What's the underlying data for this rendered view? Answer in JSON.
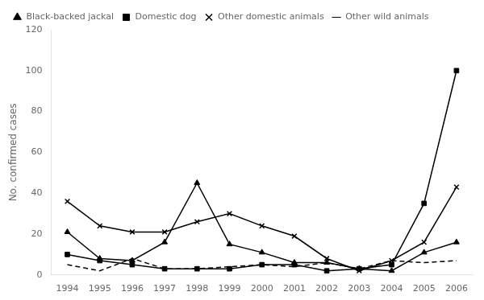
{
  "chart_data": {
    "type": "line",
    "x": [
      1994,
      1995,
      1996,
      1997,
      1998,
      1999,
      2000,
      2001,
      2002,
      2003,
      2004,
      2005,
      2006
    ],
    "xlim": [
      1993.5,
      2006.5
    ],
    "xticks": [
      1994,
      1995,
      1996,
      1997,
      1998,
      1999,
      2000,
      2001,
      2002,
      2003,
      2004,
      2005,
      2006
    ],
    "ylabel": "No. confirmed cases",
    "ylim": [
      0,
      120
    ],
    "yticks": [
      0,
      20,
      40,
      60,
      80,
      100,
      120
    ],
    "grid": false,
    "legend": "upper left",
    "series": [
      {
        "name": "Black-backed jackal",
        "color": "#000000",
        "marker": "triangle",
        "line_style": "solid",
        "values": [
          21,
          8,
          7,
          16,
          45,
          15,
          11,
          6,
          6,
          3,
          2,
          11,
          16
        ]
      },
      {
        "name": "Domestic dog",
        "color": "#000000",
        "marker": "square",
        "line_style": "solid",
        "values": [
          10,
          7,
          5,
          3,
          3,
          3,
          5,
          5,
          2,
          3,
          5,
          35,
          100
        ]
      },
      {
        "name": "Other domestic animals",
        "color": "#000000",
        "marker": "x",
        "line_style": "solid",
        "values": [
          36,
          24,
          21,
          21,
          26,
          30,
          24,
          19,
          8,
          2,
          7,
          16,
          43
        ]
      },
      {
        "name": "Other wild animals",
        "color": "#000000",
        "marker": "none",
        "line_style": "dashed",
        "values": [
          5,
          2,
          8,
          3,
          3,
          4,
          5,
          4,
          6,
          3,
          7,
          6,
          7
        ]
      }
    ]
  }
}
